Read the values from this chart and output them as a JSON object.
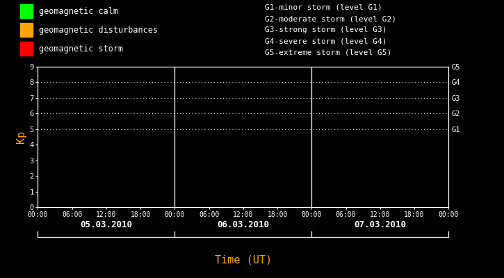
{
  "background_color": "#000000",
  "plot_bg_color": "#000000",
  "text_color": "#ffffff",
  "orange_color": "#FFA500",
  "title_x_label": "Time (UT)",
  "ylabel": "Kp",
  "ylim": [
    0,
    9
  ],
  "yticks": [
    0,
    1,
    2,
    3,
    4,
    5,
    6,
    7,
    8,
    9
  ],
  "days": [
    "05.03.2010",
    "06.03.2010",
    "07.03.2010"
  ],
  "legend_items": [
    {
      "label": "geomagnetic calm",
      "color": "#00ff00"
    },
    {
      "label": "geomagnetic disturbances",
      "color": "#ffa500"
    },
    {
      "label": "geomagnetic storm",
      "color": "#ff0000"
    }
  ],
  "g_legend_lines": [
    "G1-minor storm (level G1)",
    "G2-moderate storm (level G2)",
    "G3-strong storm (level G3)",
    "G4-severe storm (level G4)",
    "G5-extreme storm (level G5)"
  ],
  "g_right_labels": [
    {
      "text": "G5",
      "y": 9
    },
    {
      "text": "G4",
      "y": 8
    },
    {
      "text": "G3",
      "y": 7
    },
    {
      "text": "G2",
      "y": 6
    },
    {
      "text": "G1",
      "y": 5
    }
  ],
  "dotted_levels": [
    5,
    6,
    7,
    8,
    9
  ],
  "num_days": 3,
  "hours_per_day": 24,
  "figsize": [
    7.25,
    4.0
  ],
  "dpi": 100
}
